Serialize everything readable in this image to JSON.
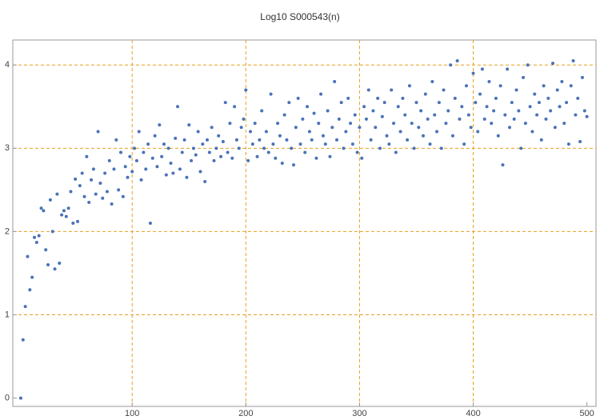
{
  "chart_data": {
    "type": "scatter",
    "title": "Log10 S000543(n)",
    "series": [
      {
        "color": "#4a72b8",
        "x": [
          2,
          4,
          6,
          8,
          10,
          12,
          14,
          16,
          18,
          20,
          22,
          24,
          26,
          28,
          30,
          32,
          34,
          36,
          38,
          40,
          42,
          44,
          46,
          48,
          50,
          52,
          54,
          56,
          58,
          60,
          62,
          64,
          66,
          68,
          70,
          72,
          74,
          76,
          78,
          80,
          82,
          84,
          86,
          88,
          90,
          92,
          94,
          96,
          98,
          100,
          102,
          104,
          106,
          108,
          110,
          112,
          114,
          116,
          118,
          120,
          122,
          124,
          126,
          128,
          130,
          132,
          134,
          136,
          138,
          140,
          142,
          144,
          146,
          148,
          150,
          152,
          154,
          156,
          158,
          160,
          162,
          164,
          166,
          168,
          170,
          172,
          174,
          176,
          178,
          180,
          182,
          184,
          186,
          188,
          190,
          192,
          194,
          196,
          198,
          200,
          202,
          204,
          206,
          208,
          210,
          212,
          214,
          216,
          218,
          220,
          222,
          224,
          226,
          228,
          230,
          232,
          234,
          236,
          238,
          240,
          242,
          244,
          246,
          248,
          250,
          252,
          254,
          256,
          258,
          260,
          262,
          264,
          266,
          268,
          270,
          272,
          274,
          276,
          278,
          280,
          282,
          284,
          286,
          288,
          290,
          292,
          294,
          296,
          298,
          300,
          302,
          304,
          306,
          308,
          310,
          312,
          314,
          316,
          318,
          320,
          322,
          324,
          326,
          328,
          330,
          332,
          334,
          336,
          338,
          340,
          342,
          344,
          346,
          348,
          350,
          352,
          354,
          356,
          358,
          360,
          362,
          364,
          366,
          368,
          370,
          372,
          374,
          376,
          378,
          380,
          382,
          384,
          386,
          388,
          390,
          392,
          394,
          396,
          398,
          400,
          402,
          404,
          406,
          408,
          410,
          412,
          414,
          416,
          418,
          420,
          422,
          424,
          426,
          428,
          430,
          432,
          434,
          436,
          438,
          440,
          442,
          444,
          446,
          448,
          450,
          452,
          454,
          456,
          458,
          460,
          462,
          464,
          466,
          468,
          470,
          472,
          474,
          476,
          478,
          480,
          482,
          484,
          486,
          488,
          490,
          492,
          494,
          496,
          498,
          500
        ],
        "values": [
          0,
          0.7,
          1.1,
          1.7,
          1.3,
          1.45,
          1.93,
          1.87,
          1.95,
          2.28,
          2.25,
          1.78,
          1.6,
          2.38,
          2.0,
          1.55,
          2.45,
          1.62,
          2.2,
          2.25,
          2.18,
          2.28,
          2.48,
          2.1,
          2.63,
          2.12,
          2.55,
          2.7,
          2.42,
          2.9,
          2.35,
          2.62,
          2.75,
          2.45,
          3.2,
          2.58,
          2.4,
          2.7,
          2.48,
          2.85,
          2.33,
          2.75,
          3.1,
          2.5,
          2.95,
          2.42,
          2.78,
          2.65,
          2.9,
          2.72,
          3.0,
          2.85,
          3.2,
          2.62,
          2.95,
          2.75,
          3.05,
          2.1,
          2.88,
          3.15,
          2.78,
          3.28,
          2.9,
          3.05,
          2.68,
          3.0,
          2.82,
          2.7,
          3.12,
          3.5,
          2.75,
          2.95,
          3.1,
          2.65,
          3.28,
          2.85,
          3.0,
          2.92,
          3.2,
          2.72,
          3.05,
          2.6,
          3.1,
          2.95,
          3.25,
          2.85,
          3.0,
          3.15,
          2.9,
          3.08,
          3.55,
          2.95,
          3.3,
          2.88,
          3.5,
          3.1,
          3.0,
          3.25,
          3.35,
          3.7,
          2.85,
          3.2,
          3.05,
          3.3,
          2.9,
          3.1,
          3.45,
          3.0,
          3.2,
          2.95,
          3.65,
          3.05,
          2.88,
          3.3,
          3.15,
          2.82,
          3.4,
          3.1,
          3.55,
          3.0,
          2.8,
          3.25,
          3.6,
          3.05,
          3.35,
          2.95,
          3.5,
          3.2,
          3.1,
          3.42,
          2.88,
          3.3,
          3.65,
          3.15,
          3.05,
          3.45,
          2.9,
          3.25,
          3.8,
          3.1,
          3.35,
          3.55,
          3.0,
          3.2,
          3.6,
          3.3,
          3.05,
          3.4,
          2.95,
          3.25,
          2.88,
          3.5,
          3.35,
          3.7,
          3.1,
          3.45,
          3.25,
          3.6,
          3.0,
          3.38,
          3.55,
          3.15,
          3.05,
          3.7,
          3.3,
          2.95,
          3.5,
          3.2,
          3.6,
          3.4,
          3.1,
          3.75,
          3.3,
          3.0,
          3.55,
          3.25,
          3.45,
          3.15,
          3.65,
          3.35,
          3.05,
          3.8,
          3.4,
          3.2,
          3.55,
          3.0,
          3.7,
          3.3,
          3.45,
          4.0,
          3.15,
          3.6,
          4.05,
          3.35,
          3.5,
          3.05,
          3.75,
          3.4,
          3.25,
          3.9,
          3.55,
          3.2,
          3.65,
          3.95,
          3.35,
          3.5,
          3.8,
          3.3,
          3.45,
          3.6,
          3.15,
          3.75,
          2.8,
          3.4,
          3.95,
          3.25,
          3.55,
          3.35,
          3.7,
          3.45,
          3.0,
          3.85,
          3.3,
          4.0,
          3.5,
          3.2,
          3.65,
          3.4,
          3.55,
          3.1,
          3.75,
          3.35,
          3.6,
          3.45,
          4.02,
          3.25,
          3.7,
          3.5,
          3.8,
          3.3,
          3.55,
          3.05,
          3.75,
          4.05,
          3.4,
          3.6,
          3.08,
          3.85,
          3.45,
          3.38
        ]
      }
    ],
    "xlim": [
      -5,
      508
    ],
    "ylim": [
      -0.1,
      4.3
    ],
    "xticks": [
      100,
      200,
      300,
      400,
      500
    ],
    "yticks": [
      0,
      1,
      2,
      3,
      4
    ],
    "xgrid": [
      100,
      200,
      300,
      400
    ],
    "ygrid": [
      1,
      2,
      3,
      4
    ],
    "grid_color": "#e8a020"
  }
}
